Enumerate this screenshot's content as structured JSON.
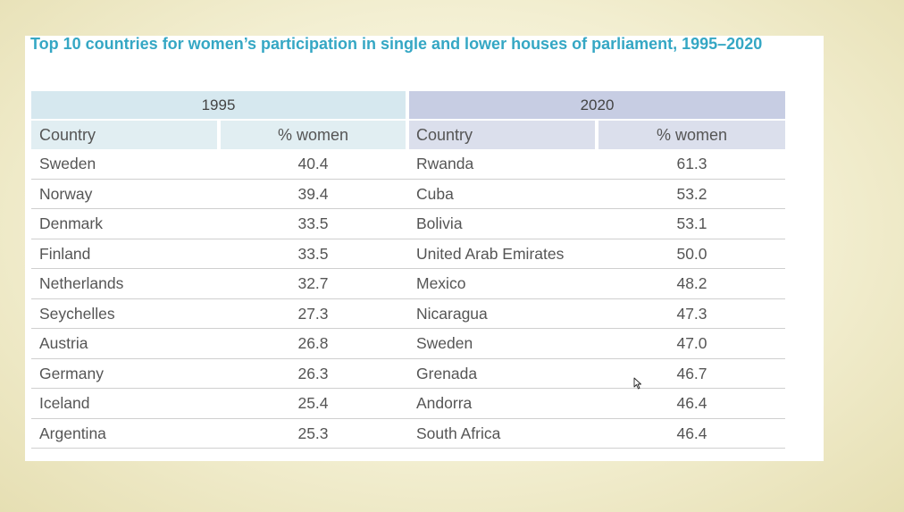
{
  "title": "Top 10 countries for women’s participation in single and lower houses of parliament, 1995–2020",
  "chart_data": {
    "type": "table",
    "title": "Top 10 countries for women’s participation in single and lower houses of parliament, 1995–2020",
    "groups": [
      "1995",
      "2020"
    ],
    "columns": [
      "Country",
      "% women",
      "Country",
      "% women"
    ],
    "rows": [
      [
        "Sweden",
        "40.4",
        "Rwanda",
        "61.3"
      ],
      [
        "Norway",
        "39.4",
        "Cuba",
        "53.2"
      ],
      [
        "Denmark",
        "33.5",
        "Bolivia",
        "53.1"
      ],
      [
        "Finland",
        "33.5",
        "United Arab Emirates",
        "50.0"
      ],
      [
        "Netherlands",
        "32.7",
        "Mexico",
        "48.2"
      ],
      [
        "Seychelles",
        "27.3",
        "Nicaragua",
        "47.3"
      ],
      [
        "Austria",
        "26.8",
        "Sweden",
        "47.0"
      ],
      [
        "Germany",
        "26.3",
        "Grenada",
        "46.7"
      ],
      [
        "Iceland",
        "25.4",
        "Andorra",
        "46.4"
      ],
      [
        "Argentina",
        "25.3",
        "South Africa",
        "46.4"
      ]
    ]
  }
}
